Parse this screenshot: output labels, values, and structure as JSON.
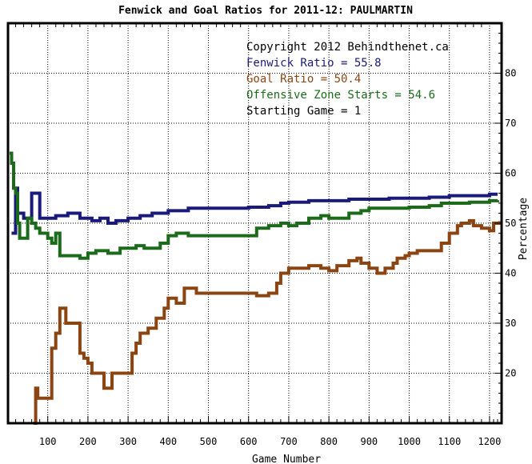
{
  "chart_data": {
    "type": "line",
    "title": "Fenwick and Goal Ratios for 2011-12: PAULMARTIN",
    "xlabel": "Game Number",
    "ylabel": "Percentage",
    "xlim": [
      1,
      1230
    ],
    "ylim": [
      10,
      90
    ],
    "x_ticks": [
      100,
      200,
      300,
      400,
      500,
      600,
      700,
      800,
      900,
      1000,
      1100,
      1200
    ],
    "y_ticks": [
      20,
      30,
      40,
      50,
      60,
      70,
      80
    ],
    "grid": true,
    "legend_position": "top-right",
    "legend": [
      {
        "text": "Copyright 2012 Behindthenet.ca",
        "color": "#000000"
      },
      {
        "text": "Fenwick Ratio = 55.8",
        "color": "#1a1a7a"
      },
      {
        "text": "Goal Ratio = 50.4",
        "color": "#8b4513"
      },
      {
        "text": "Offensive Zone Starts = 54.6",
        "color": "#1b6b1b"
      },
      {
        "text": "Starting Game = 1",
        "color": "#000000"
      }
    ],
    "series": [
      {
        "color": "#1a1a7a",
        "points": [
          [
            10,
            48
          ],
          [
            20,
            57
          ],
          [
            25,
            52
          ],
          [
            40,
            51
          ],
          [
            50,
            51
          ],
          [
            60,
            56
          ],
          [
            70,
            56
          ],
          [
            80,
            51
          ],
          [
            100,
            51
          ],
          [
            120,
            51.5
          ],
          [
            150,
            52
          ],
          [
            170,
            52
          ],
          [
            180,
            51
          ],
          [
            200,
            51
          ],
          [
            210,
            50.5
          ],
          [
            230,
            51
          ],
          [
            250,
            50
          ],
          [
            270,
            50.5
          ],
          [
            300,
            51
          ],
          [
            330,
            51.5
          ],
          [
            360,
            52
          ],
          [
            400,
            52.5
          ],
          [
            450,
            53
          ],
          [
            500,
            53
          ],
          [
            550,
            53
          ],
          [
            600,
            53.2
          ],
          [
            650,
            53.5
          ],
          [
            680,
            54
          ],
          [
            700,
            54.2
          ],
          [
            750,
            54.5
          ],
          [
            800,
            54.5
          ],
          [
            850,
            54.8
          ],
          [
            900,
            54.8
          ],
          [
            950,
            55
          ],
          [
            1000,
            55
          ],
          [
            1050,
            55.2
          ],
          [
            1100,
            55.5
          ],
          [
            1150,
            55.5
          ],
          [
            1200,
            55.8
          ],
          [
            1220,
            55.8
          ]
        ]
      },
      {
        "color": "#8b4513",
        "points": [
          [
            65,
            10
          ],
          [
            70,
            17
          ],
          [
            75,
            15
          ],
          [
            90,
            15
          ],
          [
            100,
            15
          ],
          [
            110,
            25
          ],
          [
            120,
            28
          ],
          [
            130,
            33
          ],
          [
            140,
            33
          ],
          [
            145,
            30
          ],
          [
            170,
            30
          ],
          [
            180,
            24
          ],
          [
            190,
            23
          ],
          [
            200,
            22
          ],
          [
            210,
            20
          ],
          [
            230,
            20
          ],
          [
            240,
            17
          ],
          [
            260,
            20
          ],
          [
            280,
            20
          ],
          [
            300,
            20
          ],
          [
            310,
            24
          ],
          [
            320,
            26
          ],
          [
            330,
            28
          ],
          [
            350,
            29
          ],
          [
            370,
            31
          ],
          [
            390,
            33
          ],
          [
            400,
            35
          ],
          [
            420,
            34
          ],
          [
            440,
            37
          ],
          [
            470,
            36
          ],
          [
            500,
            36
          ],
          [
            550,
            36
          ],
          [
            580,
            36
          ],
          [
            620,
            35.5
          ],
          [
            650,
            36
          ],
          [
            670,
            38
          ],
          [
            680,
            40
          ],
          [
            700,
            41
          ],
          [
            720,
            41
          ],
          [
            750,
            41.5
          ],
          [
            780,
            41
          ],
          [
            800,
            40.5
          ],
          [
            820,
            41.5
          ],
          [
            850,
            42.5
          ],
          [
            870,
            43
          ],
          [
            880,
            42
          ],
          [
            900,
            41
          ],
          [
            920,
            40
          ],
          [
            940,
            41
          ],
          [
            960,
            42
          ],
          [
            970,
            43
          ],
          [
            990,
            43.5
          ],
          [
            1000,
            44
          ],
          [
            1020,
            44.5
          ],
          [
            1050,
            44.5
          ],
          [
            1080,
            46
          ],
          [
            1100,
            48
          ],
          [
            1110,
            48
          ],
          [
            1120,
            49.5
          ],
          [
            1130,
            50
          ],
          [
            1150,
            50.5
          ],
          [
            1160,
            49.5
          ],
          [
            1180,
            49
          ],
          [
            1200,
            48.5
          ],
          [
            1210,
            50
          ],
          [
            1225,
            50.4
          ]
        ]
      },
      {
        "color": "#1b6b1b",
        "points": [
          [
            5,
            64
          ],
          [
            10,
            62
          ],
          [
            15,
            57
          ],
          [
            20,
            56
          ],
          [
            25,
            50
          ],
          [
            30,
            47
          ],
          [
            40,
            47
          ],
          [
            50,
            51
          ],
          [
            60,
            50
          ],
          [
            70,
            49
          ],
          [
            80,
            48
          ],
          [
            100,
            47
          ],
          [
            110,
            46
          ],
          [
            120,
            48
          ],
          [
            130,
            43.5
          ],
          [
            150,
            43.5
          ],
          [
            170,
            43.5
          ],
          [
            180,
            43
          ],
          [
            200,
            44
          ],
          [
            220,
            44.5
          ],
          [
            250,
            44
          ],
          [
            280,
            45
          ],
          [
            300,
            45
          ],
          [
            320,
            45.5
          ],
          [
            340,
            45
          ],
          [
            360,
            45
          ],
          [
            380,
            46
          ],
          [
            400,
            47.5
          ],
          [
            420,
            48
          ],
          [
            450,
            47.5
          ],
          [
            500,
            47.5
          ],
          [
            550,
            47.5
          ],
          [
            600,
            47.5
          ],
          [
            620,
            49
          ],
          [
            650,
            49.5
          ],
          [
            680,
            50
          ],
          [
            700,
            49.5
          ],
          [
            720,
            50
          ],
          [
            750,
            51
          ],
          [
            780,
            51.5
          ],
          [
            800,
            51
          ],
          [
            830,
            51
          ],
          [
            850,
            52
          ],
          [
            880,
            52.5
          ],
          [
            900,
            53
          ],
          [
            950,
            53
          ],
          [
            1000,
            53.2
          ],
          [
            1050,
            53.5
          ],
          [
            1080,
            54
          ],
          [
            1100,
            54
          ],
          [
            1150,
            54.2
          ],
          [
            1200,
            54.5
          ],
          [
            1220,
            54.6
          ]
        ]
      }
    ]
  }
}
